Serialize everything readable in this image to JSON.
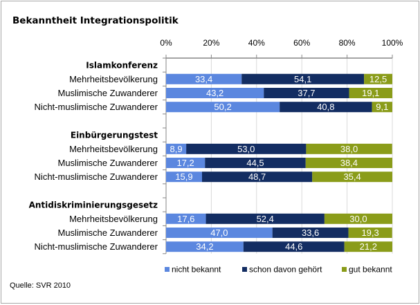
{
  "chart_data": {
    "type": "bar",
    "orientation": "horizontal",
    "stacked": true,
    "title": "Bekanntheit Integrationspolitik",
    "source": "Quelle: SVR 2010",
    "xlim": [
      0,
      100
    ],
    "xticks": [
      "0%",
      "20%",
      "40%",
      "60%",
      "80%",
      "100%"
    ],
    "grid": true,
    "legend_position": "bottom-right",
    "series": [
      {
        "name": "nicht bekannt",
        "color": "#5b87df"
      },
      {
        "name": "schon davon gehört",
        "color": "#132d62"
      },
      {
        "name": "gut bekannt",
        "color": "#8a9c19"
      }
    ],
    "groups": [
      {
        "name": "Islamkonferenz",
        "rows": [
          {
            "label": "Mehrheitsbevölkerung",
            "values": [
              33.4,
              54.1,
              12.5
            ],
            "labels": [
              "33,4",
              "54,1",
              "12,5"
            ]
          },
          {
            "label": "Muslimische Zuwanderer",
            "values": [
              43.2,
              37.7,
              19.1
            ],
            "labels": [
              "43,2",
              "37,7",
              "19,1"
            ]
          },
          {
            "label": "Nicht-muslimische Zuwanderer",
            "values": [
              50.2,
              40.8,
              9.1
            ],
            "labels": [
              "50,2",
              "40,8",
              "9,1"
            ]
          }
        ]
      },
      {
        "name": "Einbürgerungstest",
        "rows": [
          {
            "label": "Mehrheitsbevölkerung",
            "values": [
              8.9,
              53.0,
              38.0
            ],
            "labels": [
              "8,9",
              "53,0",
              "38,0"
            ]
          },
          {
            "label": "Muslimische Zuwanderer",
            "values": [
              17.2,
              44.5,
              38.4
            ],
            "labels": [
              "17,2",
              "44,5",
              "38,4"
            ]
          },
          {
            "label": "Nicht-muslimische Zuwanderer",
            "values": [
              15.9,
              48.7,
              35.4
            ],
            "labels": [
              "15,9",
              "48,7",
              "35,4"
            ]
          }
        ]
      },
      {
        "name": "Antidiskriminierungsgesetz",
        "rows": [
          {
            "label": "Mehrheitsbevölkerung",
            "values": [
              17.6,
              52.4,
              30.0
            ],
            "labels": [
              "17,6",
              "52,4",
              "30,0"
            ]
          },
          {
            "label": "Muslimische Zuwanderer",
            "values": [
              47.0,
              33.6,
              19.3
            ],
            "labels": [
              "47,0",
              "33,6",
              "19,3"
            ]
          },
          {
            "label": "Nicht-muslimische Zuwanderer",
            "values": [
              34.2,
              44.6,
              21.2
            ],
            "labels": [
              "34,2",
              "44,6",
              "21,2"
            ]
          }
        ]
      }
    ]
  }
}
